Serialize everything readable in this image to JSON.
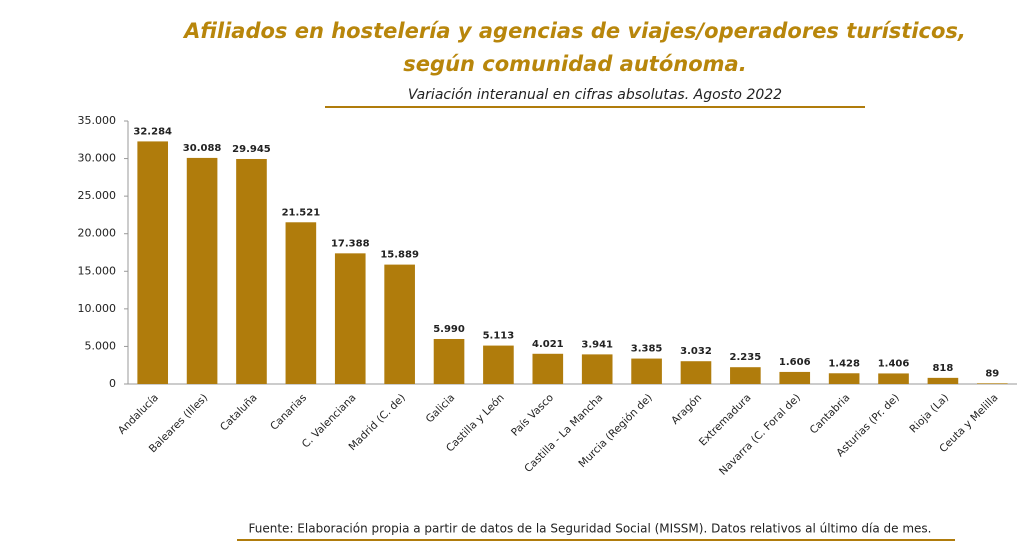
{
  "chart_data": {
    "type": "bar",
    "title": [
      "Afiliados en hostelería y agencias de viajes/operadores turísticos,",
      "según comunidad autónoma."
    ],
    "subtitle": "Variación interanual en cifras absolutas. Agosto 2022",
    "source": "Fuente: Elaboración propia a partir de datos de la Seguridad Social (MISSM). Datos relativos al último día de mes.",
    "categories": [
      "Andalucía",
      "Baleares (Illes)",
      "Cataluña",
      "Canarias",
      "C. Valenciana",
      "Madrid (C. de)",
      "Galicia",
      "Castilla y León",
      "País Vasco",
      "Castilla - La Mancha",
      "Murcia (Región de)",
      "Aragón",
      "Extremadura",
      "Navarra (C. Foral de)",
      "Cantabria",
      "Asturias (Pr. de)",
      "Rioja (La)",
      "Ceuta y Melilla"
    ],
    "values": [
      32284,
      30088,
      29945,
      21521,
      17388,
      15889,
      5990,
      5113,
      4021,
      3941,
      3385,
      3032,
      2235,
      1606,
      1428,
      1406,
      818,
      89
    ],
    "value_labels": [
      "32.284",
      "30.088",
      "29.945",
      "21.521",
      "17.388",
      "15.889",
      "5.990",
      "5.113",
      "4.021",
      "3.941",
      "3.385",
      "3.032",
      "2.235",
      "1.606",
      "1.428",
      "1.406",
      "818",
      "89"
    ],
    "color": "#b07c0c",
    "ylim": [
      0,
      35000
    ],
    "yticks": [
      0,
      {
        "value": 5000,
        "label": "5.000"
      },
      {
        "value": 10000,
        "label": "10.000"
      },
      {
        "value": 15000,
        "label": "15.000"
      },
      {
        "value": 20000,
        "label": "20.000"
      },
      {
        "value": 25000,
        "label": "25.000"
      },
      {
        "value": 30000,
        "label": "30.000"
      },
      {
        "value": 35000,
        "label": "35.000"
      }
    ],
    "grid": false
  }
}
